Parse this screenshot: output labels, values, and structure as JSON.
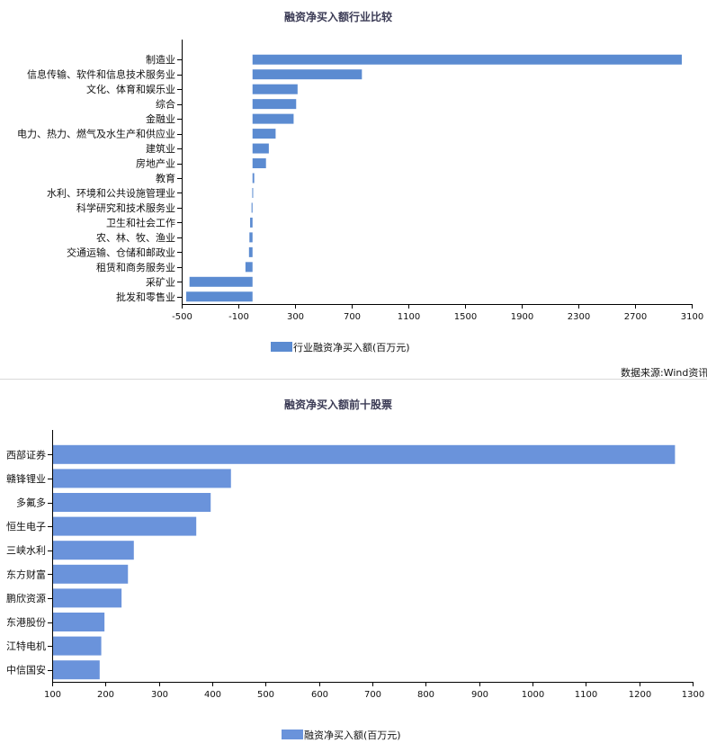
{
  "source_note": "数据来源:Wind资讯",
  "chart_data": [
    {
      "type": "bar",
      "orientation": "horizontal",
      "title": "融资净买入额行业比较",
      "categories": [
        "制造业",
        "信息传输、软件和信息技术服务业",
        "文化、体育和娱乐业",
        "综合",
        "金融业",
        "电力、热力、燃气及水生产和供应业",
        "建筑业",
        "房地产业",
        "教育",
        "水利、环境和公共设施管理业",
        "科学研究和技术服务业",
        "卫生和社会工作",
        "农、林、牧、渔业",
        "交通运输、仓储和邮政业",
        "租赁和商务服务业",
        "采矿业",
        "批发和零售业"
      ],
      "series": [
        {
          "name": "行业融资净买入额(百万元)",
          "values": [
            3030,
            772,
            318,
            308,
            290,
            163,
            115,
            95,
            12,
            -2,
            -7,
            -17,
            -22,
            -25,
            -50,
            -445,
            -468
          ]
        }
      ],
      "xlim": [
        -500,
        3100
      ],
      "xticks": [
        -500,
        -100,
        300,
        700,
        1100,
        1500,
        1900,
        2300,
        2700,
        3100
      ],
      "color": "#5b8bd1",
      "legend": "bottom-center"
    },
    {
      "type": "bar",
      "orientation": "horizontal",
      "title": "融资净买入额前十股票",
      "categories": [
        "西部证券",
        "赣锋锂业",
        "多氟多",
        "恒生电子",
        "三峡水利",
        "东方财富",
        "鹏欣资源",
        "东港股份",
        "江特电机",
        "中信国安"
      ],
      "series": [
        {
          "name": "融资净买入额(百万元)",
          "values": [
            1267,
            435,
            397,
            370,
            253,
            242,
            230,
            198,
            192,
            189
          ]
        }
      ],
      "xlim": [
        100,
        1300
      ],
      "xticks": [
        100,
        200,
        300,
        400,
        500,
        600,
        700,
        800,
        900,
        1000,
        1100,
        1200,
        1300
      ],
      "color": "#6a93db",
      "legend": "bottom-center"
    }
  ]
}
